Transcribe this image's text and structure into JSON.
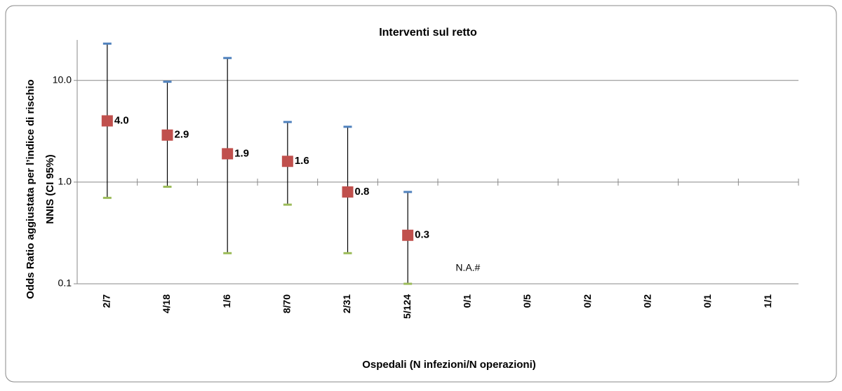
{
  "chart_data": {
    "type": "errorbar",
    "title": "Interventi sul retto",
    "x_label": "Ospedali (N infezioni/N operazioni)",
    "y_label": [
      "Odds Ratio aggiustata per l’indice di rischio",
      "NNIS (CI 95%)"
    ],
    "categories": [
      "2/7",
      "4/18",
      "1/6",
      "8/70",
      "2/31",
      "5/124",
      "0/1",
      "0/5",
      "0/2",
      "0/2",
      "0/1",
      "1/1"
    ],
    "values": [
      4.0,
      2.9,
      1.9,
      1.6,
      0.8,
      0.3,
      null,
      null,
      null,
      null,
      null,
      null
    ],
    "value_labels": [
      "4.0",
      "2.9",
      "1.9",
      "1.6",
      "0.8",
      "0.3",
      null,
      null,
      null,
      null,
      null,
      null
    ],
    "upper": [
      23,
      9.7,
      16.6,
      3.9,
      3.5,
      0.8,
      null,
      null,
      null,
      null,
      null,
      null
    ],
    "lower": [
      0.7,
      0.9,
      0.2,
      0.6,
      0.2,
      0.1,
      null,
      null,
      null,
      null,
      null,
      null
    ],
    "color": "#c0504d",
    "upper_color": "#4f81bd",
    "lower_color": "#9bbb59",
    "log_scale": true,
    "ylim": [
      0.1,
      25
    ],
    "yticks": [
      0.1,
      {
        "value": 1,
        "label": "1.0"
      },
      {
        "value": 10,
        "label": "10.0"
      }
    ],
    "grid": true,
    "annotation": {
      "text": "N.A.#",
      "category": 6
    }
  }
}
